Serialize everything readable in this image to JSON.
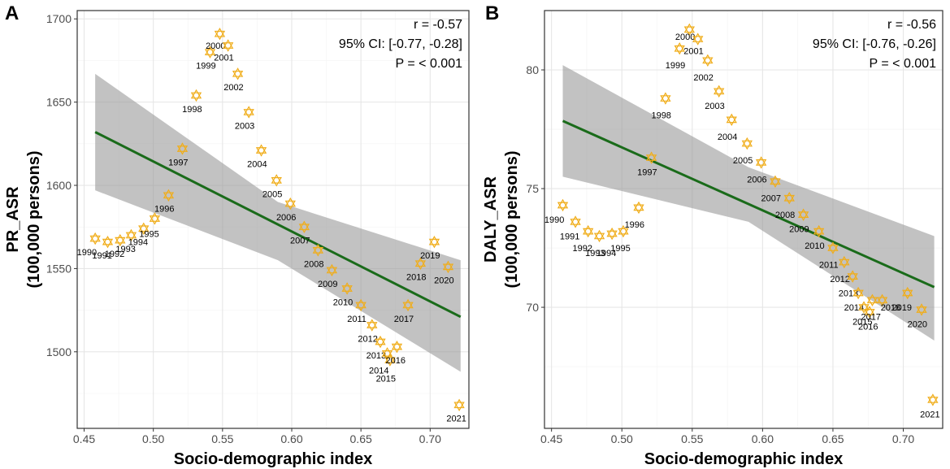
{
  "chart_data": [
    {
      "panel": "A",
      "type": "scatter",
      "xlabel": "Socio-demographic index",
      "ylabel": "PR_ASR",
      "ylabel2": "(100,000 persons)",
      "xlim": [
        0.445,
        0.728
      ],
      "ylim": [
        1454,
        1705
      ],
      "xticks": [
        0.45,
        0.5,
        0.55,
        0.6,
        0.65,
        0.7
      ],
      "xtick_labels": [
        "0.45",
        "0.50",
        "0.55",
        "0.60",
        "0.65",
        "0.70"
      ],
      "yticks": [
        1500,
        1550,
        1600,
        1650,
        1700
      ],
      "ytick_labels": [
        "1500",
        "1550",
        "1600",
        "1650",
        "1700"
      ],
      "stats": [
        "r = -0.57",
        "95% CI: [-0.77, -0.28]",
        "P = < 0.001"
      ],
      "fit": {
        "x": [
          0.458,
          0.722
        ],
        "y": [
          1632,
          1521
        ]
      },
      "ci_band": {
        "x": [
          0.458,
          0.59,
          0.722
        ],
        "upper": [
          1667,
          1590,
          1555
        ],
        "lower": [
          1597,
          1555,
          1488
        ]
      },
      "points": [
        {
          "year": "1990",
          "x": 0.458,
          "y": 1568,
          "lx": 0.452,
          "ly": 1560
        },
        {
          "year": "1991",
          "x": 0.467,
          "y": 1566,
          "lx": 0.463,
          "ly": 1558
        },
        {
          "year": "1992",
          "x": 0.476,
          "y": 1567,
          "lx": 0.472,
          "ly": 1559
        },
        {
          "year": "1993",
          "x": 0.484,
          "y": 1570,
          "lx": 0.48,
          "ly": 1562
        },
        {
          "year": "1994",
          "x": 0.493,
          "y": 1574,
          "lx": 0.489,
          "ly": 1566
        },
        {
          "year": "1995",
          "x": 0.501,
          "y": 1580,
          "lx": 0.497,
          "ly": 1571
        },
        {
          "year": "1996",
          "x": 0.511,
          "y": 1594,
          "lx": 0.508,
          "ly": 1586
        },
        {
          "year": "1997",
          "x": 0.521,
          "y": 1622,
          "lx": 0.518,
          "ly": 1614
        },
        {
          "year": "1998",
          "x": 0.531,
          "y": 1654,
          "lx": 0.528,
          "ly": 1646
        },
        {
          "year": "1999",
          "x": 0.541,
          "y": 1680,
          "lx": 0.538,
          "ly": 1672
        },
        {
          "year": "2000",
          "x": 0.548,
          "y": 1691,
          "lx": 0.545,
          "ly": 1684
        },
        {
          "year": "2001",
          "x": 0.554,
          "y": 1684,
          "lx": 0.551,
          "ly": 1677
        },
        {
          "year": "2002",
          "x": 0.561,
          "y": 1667,
          "lx": 0.558,
          "ly": 1659
        },
        {
          "year": "2003",
          "x": 0.569,
          "y": 1644,
          "lx": 0.566,
          "ly": 1636
        },
        {
          "year": "2004",
          "x": 0.578,
          "y": 1621,
          "lx": 0.575,
          "ly": 1613
        },
        {
          "year": "2005",
          "x": 0.589,
          "y": 1603,
          "lx": 0.586,
          "ly": 1595
        },
        {
          "year": "2006",
          "x": 0.599,
          "y": 1589,
          "lx": 0.596,
          "ly": 1581
        },
        {
          "year": "2007",
          "x": 0.609,
          "y": 1575,
          "lx": 0.606,
          "ly": 1567
        },
        {
          "year": "2008",
          "x": 0.619,
          "y": 1561,
          "lx": 0.616,
          "ly": 1553
        },
        {
          "year": "2009",
          "x": 0.629,
          "y": 1549,
          "lx": 0.626,
          "ly": 1541
        },
        {
          "year": "2010",
          "x": 0.64,
          "y": 1538,
          "lx": 0.637,
          "ly": 1530
        },
        {
          "year": "2011",
          "x": 0.65,
          "y": 1528,
          "lx": 0.647,
          "ly": 1520
        },
        {
          "year": "2012",
          "x": 0.658,
          "y": 1516,
          "lx": 0.655,
          "ly": 1508
        },
        {
          "year": "2013",
          "x": 0.664,
          "y": 1506,
          "lx": 0.661,
          "ly": 1498
        },
        {
          "year": "2014",
          "x": 0.669,
          "y": 1499,
          "lx": 0.663,
          "ly": 1489
        },
        {
          "year": "2015",
          "x": 0.671,
          "y": 1495,
          "lx": 0.668,
          "ly": 1484
        },
        {
          "year": "2016",
          "x": 0.676,
          "y": 1503,
          "lx": 0.675,
          "ly": 1495
        },
        {
          "year": "2017",
          "x": 0.684,
          "y": 1528,
          "lx": 0.681,
          "ly": 1520
        },
        {
          "year": "2018",
          "x": 0.693,
          "y": 1553,
          "lx": 0.69,
          "ly": 1545
        },
        {
          "year": "2019",
          "x": 0.703,
          "y": 1566,
          "lx": 0.7,
          "ly": 1558
        },
        {
          "year": "2020",
          "x": 0.713,
          "y": 1551,
          "lx": 0.71,
          "ly": 1543
        },
        {
          "year": "2021",
          "x": 0.721,
          "y": 1468,
          "lx": 0.719,
          "ly": 1460
        }
      ]
    },
    {
      "panel": "B",
      "type": "scatter",
      "xlabel": "Socio-demographic index",
      "ylabel": "DALY_ASR",
      "ylabel2": "(100,000 persons)",
      "xlim": [
        0.445,
        0.728
      ],
      "ylim": [
        64.9,
        82.5
      ],
      "xticks": [
        0.45,
        0.5,
        0.55,
        0.6,
        0.65,
        0.7
      ],
      "xtick_labels": [
        "0.45",
        "0.50",
        "0.55",
        "0.60",
        "0.65",
        "0.70"
      ],
      "yticks": [
        70,
        75,
        80
      ],
      "ytick_labels": [
        "70",
        "75",
        "80"
      ],
      "stats": [
        "r = -0.56",
        "95% CI: [-0.76, -0.26]",
        "P = < 0.001"
      ],
      "fit": {
        "x": [
          0.458,
          0.722
        ],
        "y": [
          77.85,
          70.85
        ]
      },
      "ci_band": {
        "x": [
          0.458,
          0.59,
          0.722
        ],
        "upper": [
          80.2,
          75.9,
          73.0
        ],
        "lower": [
          75.5,
          73.6,
          68.6
        ]
      },
      "points": [
        {
          "year": "1990",
          "x": 0.458,
          "y": 74.3,
          "lx": 0.452,
          "ly": 73.7
        },
        {
          "year": "1991",
          "x": 0.467,
          "y": 73.6,
          "lx": 0.463,
          "ly": 73.0
        },
        {
          "year": "1992",
          "x": 0.476,
          "y": 73.2,
          "lx": 0.472,
          "ly": 72.5
        },
        {
          "year": "1993",
          "x": 0.484,
          "y": 73.0,
          "lx": 0.481,
          "ly": 72.3
        },
        {
          "year": "1994",
          "x": 0.493,
          "y": 73.1,
          "lx": 0.489,
          "ly": 72.3
        },
        {
          "year": "1995",
          "x": 0.501,
          "y": 73.2,
          "lx": 0.499,
          "ly": 72.5
        },
        {
          "year": "1996",
          "x": 0.512,
          "y": 74.2,
          "lx": 0.509,
          "ly": 73.5
        },
        {
          "year": "1997",
          "x": 0.521,
          "y": 76.3,
          "lx": 0.518,
          "ly": 75.7
        },
        {
          "year": "1998",
          "x": 0.531,
          "y": 78.8,
          "lx": 0.528,
          "ly": 78.1
        },
        {
          "year": "1999",
          "x": 0.541,
          "y": 80.9,
          "lx": 0.538,
          "ly": 80.2
        },
        {
          "year": "2000",
          "x": 0.548,
          "y": 81.7,
          "lx": 0.545,
          "ly": 81.4
        },
        {
          "year": "2001",
          "x": 0.554,
          "y": 81.3,
          "lx": 0.551,
          "ly": 80.8
        },
        {
          "year": "2002",
          "x": 0.561,
          "y": 80.4,
          "lx": 0.558,
          "ly": 79.7
        },
        {
          "year": "2003",
          "x": 0.569,
          "y": 79.1,
          "lx": 0.566,
          "ly": 78.5
        },
        {
          "year": "2004",
          "x": 0.578,
          "y": 77.9,
          "lx": 0.575,
          "ly": 77.2
        },
        {
          "year": "2005",
          "x": 0.589,
          "y": 76.9,
          "lx": 0.586,
          "ly": 76.2
        },
        {
          "year": "2006",
          "x": 0.599,
          "y": 76.1,
          "lx": 0.596,
          "ly": 75.4
        },
        {
          "year": "2007",
          "x": 0.609,
          "y": 75.3,
          "lx": 0.606,
          "ly": 74.6
        },
        {
          "year": "2008",
          "x": 0.619,
          "y": 74.6,
          "lx": 0.616,
          "ly": 73.9
        },
        {
          "year": "2009",
          "x": 0.629,
          "y": 73.9,
          "lx": 0.626,
          "ly": 73.3
        },
        {
          "year": "2010",
          "x": 0.64,
          "y": 73.2,
          "lx": 0.637,
          "ly": 72.6
        },
        {
          "year": "2011",
          "x": 0.65,
          "y": 72.5,
          "lx": 0.647,
          "ly": 71.8
        },
        {
          "year": "2012",
          "x": 0.658,
          "y": 71.9,
          "lx": 0.655,
          "ly": 71.2
        },
        {
          "year": "2013",
          "x": 0.664,
          "y": 71.3,
          "lx": 0.661,
          "ly": 70.6
        },
        {
          "year": "2014",
          "x": 0.668,
          "y": 70.6,
          "lx": 0.665,
          "ly": 70.0
        },
        {
          "year": "2015",
          "x": 0.672,
          "y": 70.0,
          "lx": 0.671,
          "ly": 69.4
        },
        {
          "year": "2016",
          "x": 0.676,
          "y": 69.8,
          "lx": 0.675,
          "ly": 69.2
        },
        {
          "year": "2017",
          "x": 0.678,
          "y": 70.3,
          "lx": 0.677,
          "ly": 69.6
        },
        {
          "year": "2018",
          "x": 0.685,
          "y": 70.3,
          "lx": 0.691,
          "ly": 70.0
        },
        {
          "year": "2019",
          "x": 0.703,
          "y": 70.6,
          "lx": 0.699,
          "ly": 70.0
        },
        {
          "year": "2020",
          "x": 0.713,
          "y": 69.9,
          "lx": 0.71,
          "ly": 69.3
        },
        {
          "year": "2021",
          "x": 0.721,
          "y": 66.1,
          "lx": 0.719,
          "ly": 65.5
        }
      ]
    }
  ]
}
